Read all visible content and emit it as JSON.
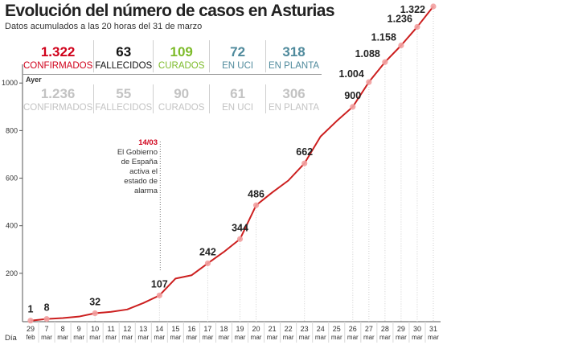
{
  "header": {
    "title": "Evolución del número de casos en Asturias",
    "subtitle": "Datos acumulados a las 20 horas del 31 de marzo"
  },
  "summary": {
    "today": [
      {
        "value": "1.322",
        "label": "CONFIRMADOS",
        "color": "#d0021b"
      },
      {
        "value": "63",
        "label": "FALLECIDOS",
        "color": "#111111"
      },
      {
        "value": "109",
        "label": "CURADOS",
        "color": "#7dbb2a"
      },
      {
        "value": "72",
        "label": "EN UCI",
        "color": "#4f8a9c"
      },
      {
        "value": "318",
        "label": "EN PLANTA",
        "color": "#4f8a9c"
      }
    ],
    "yesterday_label": "Ayer",
    "yesterday": [
      {
        "value": "1.236",
        "label": "CONFIRMADOS"
      },
      {
        "value": "55",
        "label": "FALLECIDOS"
      },
      {
        "value": "90",
        "label": "CURADOS"
      },
      {
        "value": "61",
        "label": "EN UCI"
      },
      {
        "value": "306",
        "label": "EN PLANTA"
      }
    ]
  },
  "annotation": {
    "date": "14/03",
    "text": "El Gobierno\nde España\nactiva el\nestado de\nalarma"
  },
  "axis_footer": "Día",
  "chart_data": {
    "type": "line",
    "title": "Evolución del número de casos en Asturias",
    "x_day_labels": [
      "29",
      "7",
      "8",
      "9",
      "10",
      "11",
      "12",
      "13",
      "14",
      "15",
      "16",
      "17",
      "18",
      "19",
      "20",
      "21",
      "22",
      "23",
      "24",
      "25",
      "26",
      "27",
      "28",
      "29",
      "30",
      "31"
    ],
    "x_month_labels": [
      "feb",
      "mar",
      "mar",
      "mar",
      "mar",
      "mar",
      "mar",
      "mar",
      "mar",
      "mar",
      "mar",
      "mar",
      "mar",
      "mar",
      "mar",
      "mar",
      "mar",
      "mar",
      "mar",
      "mar",
      "mar",
      "mar",
      "mar",
      "mar",
      "mar",
      "mar"
    ],
    "values": [
      1,
      8,
      12,
      18,
      32,
      38,
      48,
      75,
      107,
      178,
      192,
      242,
      290,
      344,
      486,
      540,
      590,
      662,
      775,
      840,
      900,
      1004,
      1088,
      1158,
      1236,
      1322
    ],
    "labeled_points": [
      {
        "index": 0,
        "text": "1"
      },
      {
        "index": 1,
        "text": "8"
      },
      {
        "index": 4,
        "text": "32"
      },
      {
        "index": 8,
        "text": "107"
      },
      {
        "index": 11,
        "text": "242"
      },
      {
        "index": 13,
        "text": "344"
      },
      {
        "index": 14,
        "text": "486"
      },
      {
        "index": 17,
        "text": "662"
      },
      {
        "index": 20,
        "text": "900"
      },
      {
        "index": 21,
        "text": "1.004"
      },
      {
        "index": 22,
        "text": "1.088"
      },
      {
        "index": 23,
        "text": "1.158"
      },
      {
        "index": 24,
        "text": "1.236"
      },
      {
        "index": 25,
        "text": "1.322"
      }
    ],
    "marker_indices": [
      0,
      1,
      4,
      8,
      11,
      13,
      14,
      17,
      20,
      21,
      22,
      23,
      24,
      25
    ],
    "y_ticks": [
      200,
      400,
      600,
      800,
      1000
    ],
    "ylim": [
      0,
      1322
    ],
    "annotation_index": 8,
    "line_color": "#cc1f1f",
    "marker_color": "#f2a0a0",
    "grid": "vertical dotted lines at labeled points"
  }
}
